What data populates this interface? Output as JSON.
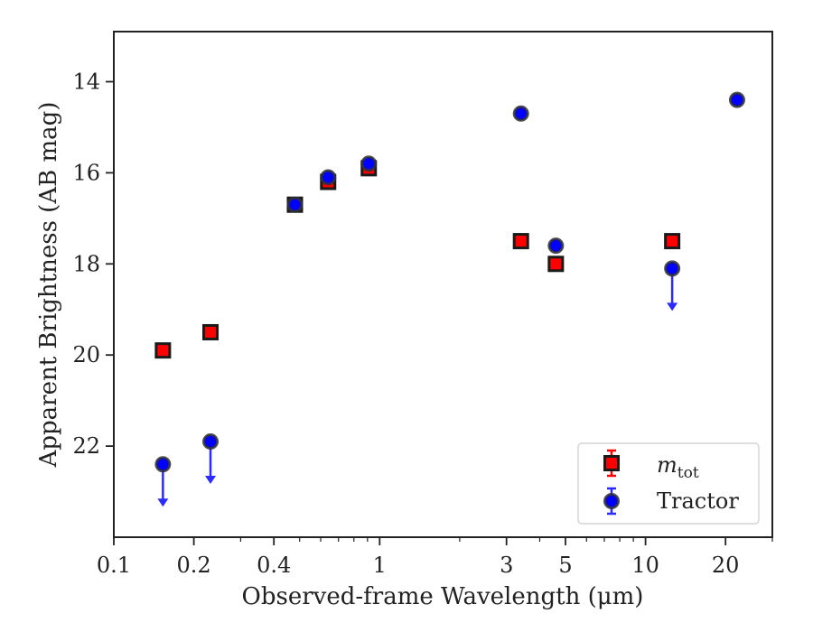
{
  "chart_data": {
    "type": "scatter",
    "title": "",
    "xlabel": "Observed-frame Wavelength (μm)",
    "ylabel": "Apparent Brightness (AB mag)",
    "xscale": "log",
    "xlim": [
      0.1,
      30
    ],
    "ylim": [
      24,
      12.9
    ],
    "y_inverted": true,
    "x_ticks": [
      {
        "value": 0.1,
        "label": "0.1"
      },
      {
        "value": 0.2,
        "label": "0.2"
      },
      {
        "value": 0.4,
        "label": "0.4"
      },
      {
        "value": 1,
        "label": "1"
      },
      {
        "value": 3,
        "label": "3"
      },
      {
        "value": 5,
        "label": "5"
      },
      {
        "value": 10,
        "label": "10"
      },
      {
        "value": 20,
        "label": "20"
      }
    ],
    "y_ticks": [
      {
        "value": 14,
        "label": "14"
      },
      {
        "value": 16,
        "label": "16"
      },
      {
        "value": 18,
        "label": "18"
      },
      {
        "value": 20,
        "label": "20"
      },
      {
        "value": 22,
        "label": "22"
      }
    ],
    "legend_position": "lower-right",
    "series": [
      {
        "name": "m",
        "name_subscript": "tot",
        "color": "#ff0000",
        "edge_color": "#1a1a1a",
        "marker": "square",
        "points": [
          {
            "x": 0.153,
            "y": 19.9
          },
          {
            "x": 0.231,
            "y": 19.5
          },
          {
            "x": 0.48,
            "y": 16.7
          },
          {
            "x": 0.64,
            "y": 16.2
          },
          {
            "x": 0.91,
            "y": 15.9
          },
          {
            "x": 3.4,
            "y": 17.5
          },
          {
            "x": 4.6,
            "y": 18.0
          },
          {
            "x": 12.6,
            "y": 17.5
          }
        ]
      },
      {
        "name": "Tractor",
        "color": "#0000ff",
        "edge_color": "#333333",
        "marker": "circle",
        "points": [
          {
            "x": 0.153,
            "y": 22.4,
            "upper_limit": true
          },
          {
            "x": 0.231,
            "y": 21.9,
            "upper_limit": true
          },
          {
            "x": 0.48,
            "y": 16.7
          },
          {
            "x": 0.64,
            "y": 16.1
          },
          {
            "x": 0.91,
            "y": 15.8
          },
          {
            "x": 3.4,
            "y": 14.7
          },
          {
            "x": 4.6,
            "y": 17.6
          },
          {
            "x": 12.6,
            "y": 18.1,
            "upper_limit": true
          },
          {
            "x": 22.1,
            "y": 14.4
          }
        ]
      }
    ]
  }
}
